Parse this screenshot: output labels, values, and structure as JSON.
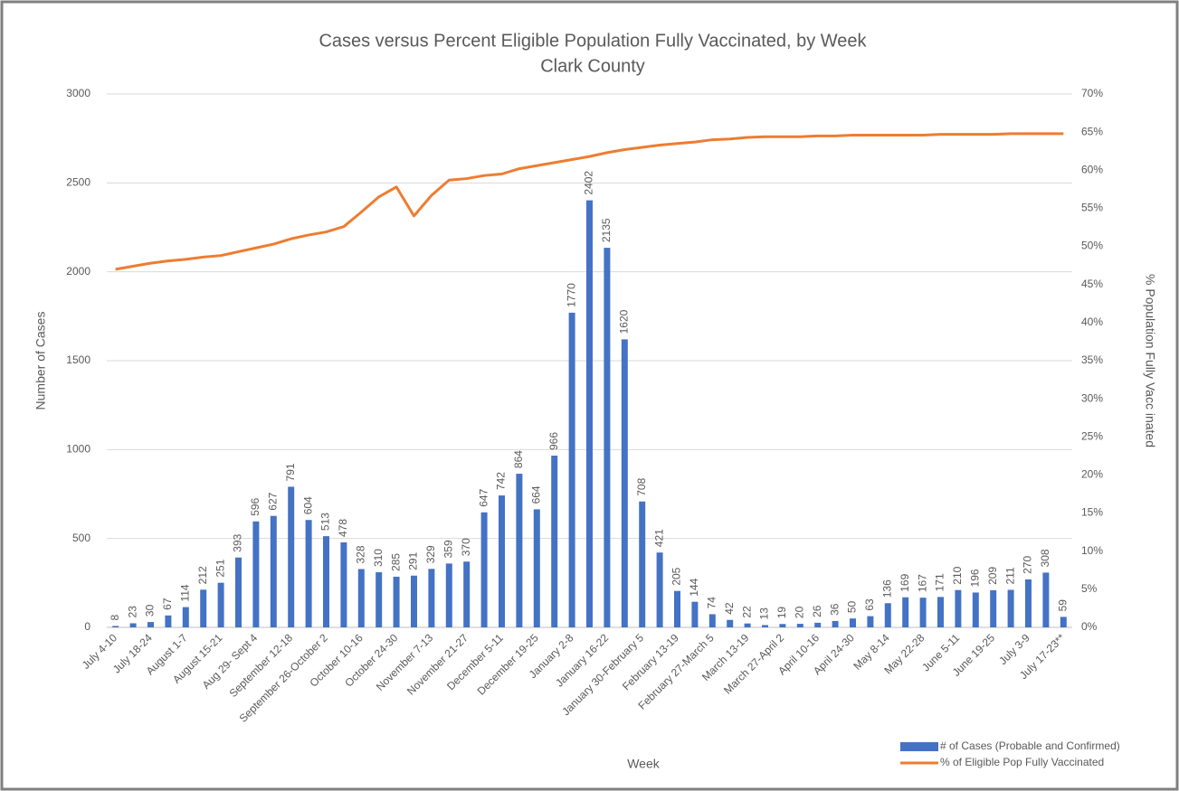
{
  "chart_data": {
    "type": "bar",
    "title": "Cases versus Percent Eligible Population Fully Vaccinated, by Week",
    "subtitle": "Clark County",
    "x_label": "Week",
    "y_label": "Number of Cases",
    "y2_label": "% Population Fully Vacc inated",
    "categories": [
      "July 4-10",
      null,
      "July 18-24",
      null,
      "August 1-7",
      null,
      "August 15-21",
      null,
      "Aug 29- Sept 4",
      null,
      "September 12-18",
      null,
      "September 26-October 2",
      null,
      "October 10-16",
      null,
      "October 24-30",
      null,
      "November 7-13",
      null,
      "November 21-27",
      null,
      "December 5-11",
      null,
      "December 19-25",
      null,
      "January 2-8",
      null,
      "January 16-22",
      null,
      "January 30-February 5",
      null,
      "February 13-19",
      null,
      "February 27-March 5",
      null,
      "March 13-19",
      null,
      "March 27-April 2",
      null,
      "April 10-16",
      null,
      "April 24-30",
      null,
      "May 8-14",
      null,
      "May 22-28",
      null,
      "June 5-11",
      null,
      "June 19-25",
      null,
      "July 3-9",
      null,
      "July 17-23**"
    ],
    "series": [
      {
        "name": "# of Cases (Probable and Confirmed)",
        "type": "bar",
        "color": "#4472c4",
        "values": [
          8,
          23,
          30,
          67,
          114,
          212,
          251,
          393,
          596,
          627,
          791,
          604,
          513,
          478,
          328,
          310,
          285,
          291,
          329,
          359,
          370,
          647,
          742,
          864,
          664,
          966,
          1770,
          2402,
          2135,
          1620,
          708,
          421,
          205,
          144,
          74,
          42,
          22,
          13,
          19,
          20,
          26,
          36,
          50,
          63,
          136,
          169,
          167,
          171,
          210,
          196,
          209,
          211,
          270,
          308,
          59
        ]
      },
      {
        "name": "% of Eligible Pop Fully Vaccinated",
        "type": "line",
        "axis": "y2",
        "color": "#ed7d31",
        "values": [
          47,
          47.4,
          47.8,
          48.1,
          48.3,
          48.6,
          48.8,
          49.3,
          49.8,
          50.3,
          51,
          51.5,
          51.9,
          52.6,
          54.5,
          56.5,
          57.8,
          54,
          56.7,
          58.7,
          58.9,
          59.3,
          59.5,
          60.2,
          60.6,
          61,
          61.4,
          61.8,
          62.3,
          62.7,
          63,
          63.3,
          63.5,
          63.7,
          64,
          64.1,
          64.3,
          64.4,
          64.4,
          64.4,
          64.5,
          64.5,
          64.6,
          64.6,
          64.6,
          64.6,
          64.6,
          64.7,
          64.7,
          64.7,
          64.7,
          64.8,
          64.8,
          64.8,
          64.8
        ]
      }
    ],
    "ylim": [
      0,
      3000
    ],
    "yticks": [
      0,
      500,
      1000,
      1500,
      2000,
      2500,
      3000
    ],
    "y2lim": [
      0,
      70
    ],
    "y2ticks": [
      {
        "value": 0,
        "label": "0%"
      },
      {
        "value": 5,
        "label": "5%"
      },
      {
        "value": 10,
        "label": "10%"
      },
      {
        "value": 15,
        "label": "15%"
      },
      {
        "value": 20,
        "label": "20%"
      },
      {
        "value": 25,
        "label": "25%"
      },
      {
        "value": 30,
        "label": "30%"
      },
      {
        "value": 35,
        "label": "35%"
      },
      {
        "value": 40,
        "label": "40%"
      },
      {
        "value": 45,
        "label": "45%"
      },
      {
        "value": 50,
        "label": "50%"
      },
      {
        "value": 55,
        "label": "55%"
      },
      {
        "value": 60,
        "label": "60%"
      },
      {
        "value": 65,
        "label": "65%"
      },
      {
        "value": 70,
        "label": "70%"
      }
    ],
    "grid": true,
    "legend": "bottom-right"
  }
}
